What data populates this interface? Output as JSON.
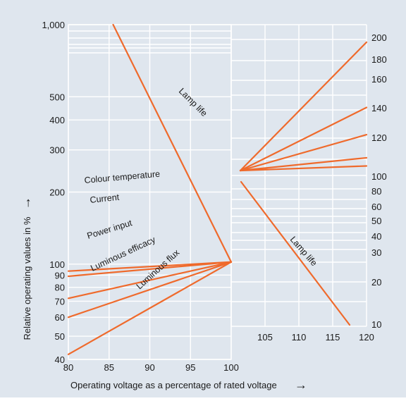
{
  "chart_data": {
    "type": "line",
    "title": "",
    "xlabel": "Operating voltage as a percentage of rated voltage",
    "ylabel": "Relative operating values in %",
    "grid": true,
    "arrow_glyph": "→",
    "colors": {
      "background": "#dfe6ee",
      "grid": "#ffffff",
      "line": "#ef6a2c",
      "text": "#1a1a1a"
    },
    "left_panel": {
      "x_range": [
        80,
        100
      ],
      "x_ticks": [
        80,
        85,
        90,
        95,
        100
      ],
      "y_scale": "log",
      "y_range": [
        40,
        1000
      ],
      "y_ticks": [
        {
          "value": 40,
          "label": "40"
        },
        {
          "value": 50,
          "label": "50"
        },
        {
          "value": 60,
          "label": "60"
        },
        {
          "value": 70,
          "label": "70"
        },
        {
          "value": 80,
          "label": "80"
        },
        {
          "value": 90,
          "label": "90"
        },
        {
          "value": 100,
          "label": "100"
        },
        {
          "value": 200,
          "label": "200"
        },
        {
          "value": 300,
          "label": "300"
        },
        {
          "value": 400,
          "label": "400"
        },
        {
          "value": 500,
          "label": "500"
        },
        {
          "value": 1000,
          "label": "1,000"
        }
      ],
      "series": [
        {
          "name": "Colour temperature",
          "points": [
            [
              80,
              93.5
            ],
            [
              100,
              100
            ]
          ]
        },
        {
          "name": "Current",
          "points": [
            [
              80,
              89
            ],
            [
              100,
              100
            ]
          ]
        },
        {
          "name": "Power input",
          "points": [
            [
              80,
              72
            ],
            [
              100,
              100
            ]
          ]
        },
        {
          "name": "Luminous efficacy",
          "points": [
            [
              80,
              60
            ],
            [
              100,
              100
            ]
          ]
        },
        {
          "name": "Luminous flux",
          "points": [
            [
              80,
              42
            ],
            [
              100,
              100
            ]
          ]
        },
        {
          "name": "Lamp life",
          "points": [
            [
              85.5,
              1000
            ],
            [
              100,
              100
            ]
          ]
        }
      ]
    },
    "right_panel": {
      "x_range": [
        100,
        120
      ],
      "x_ticks": [
        105,
        110,
        115,
        120
      ],
      "y_ticks_low": [
        10,
        20,
        30,
        40,
        50,
        60,
        80,
        100
      ],
      "y_ticks_high": [
        100,
        120,
        140,
        160,
        180,
        200
      ],
      "series": [
        {
          "name": "",
          "points": [
            [
              100,
              100
            ],
            [
              120,
              198
            ]
          ]
        },
        {
          "name": "",
          "points": [
            [
              100,
              100
            ],
            [
              120,
              150
            ]
          ]
        },
        {
          "name": "",
          "points": [
            [
              100,
              100
            ],
            [
              120,
              130
            ]
          ]
        },
        {
          "name": "",
          "points": [
            [
              100,
              100
            ],
            [
              120,
              113
            ]
          ]
        },
        {
          "name": "",
          "points": [
            [
              100,
              100
            ],
            [
              120,
              107
            ]
          ]
        },
        {
          "name": "Lamp life",
          "points": [
            [
              100,
              98
            ],
            [
              117.5,
              10
            ]
          ]
        }
      ]
    }
  }
}
